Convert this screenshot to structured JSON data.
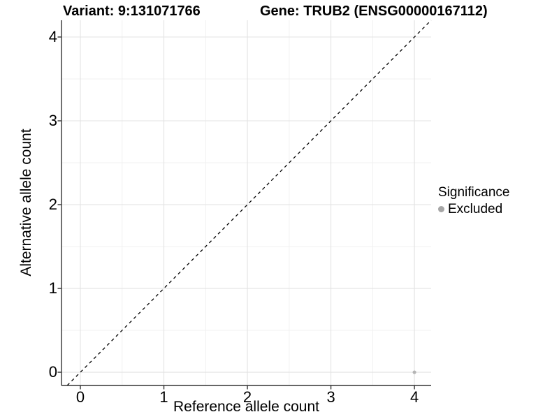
{
  "header": {
    "title_left": "Variant: 9:131071766",
    "title_right": "Gene: TRUB2 (ENSG00000167112)"
  },
  "chart_data": {
    "type": "scatter",
    "title_left": "Variant: 9:131071766",
    "title_right": "Gene: TRUB2 (ENSG00000167112)",
    "xlabel": "Reference allele count",
    "ylabel": "Alternative allele count",
    "x_ticks": [
      0,
      1,
      2,
      3,
      4
    ],
    "y_ticks": [
      0,
      1,
      2,
      3,
      4
    ],
    "xlim": [
      -0.226,
      4.2
    ],
    "ylim": [
      -0.158,
      4.2
    ],
    "grid": {
      "major": true,
      "minor": true
    },
    "reference_line": {
      "type": "identity",
      "style": "dashed",
      "color": "#000000"
    },
    "points": [
      {
        "x": 4,
        "y": 0,
        "series": "Excluded"
      }
    ],
    "series_colors": {
      "Excluded": "#b5b5b5"
    },
    "legend": {
      "title": "Significance",
      "position": "right",
      "items": [
        {
          "label": "Excluded",
          "color": "#a6a6a6"
        }
      ]
    }
  },
  "colors": {
    "background": "#ffffff",
    "axis": "#333333",
    "grid_major": "#e3e3e3",
    "grid_minor": "#f1f1f1",
    "text": "#000000"
  }
}
